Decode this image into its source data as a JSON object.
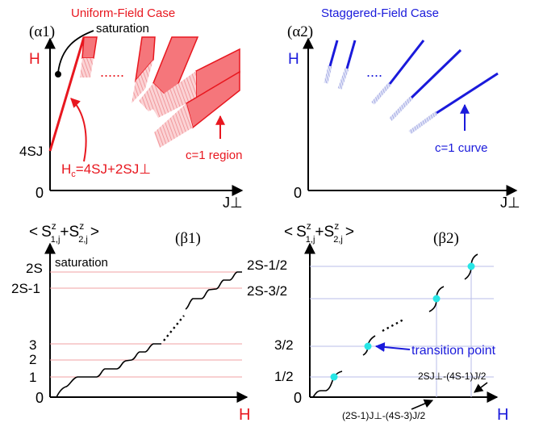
{
  "colors": {
    "red": "#e8171f",
    "red_fill": "#f5767b",
    "blue": "#1a1adb",
    "blue_pale": "#aab0e8",
    "red_pale": "#f5b3b6",
    "cyan": "#27e6e6",
    "pink_line": "#f2a0a3",
    "lavender_line": "#b9bde8",
    "ink": "#000000"
  },
  "panels": {
    "a1": {
      "heading": "Uniform-Field Case",
      "label": "(α1)",
      "y_axis": "H",
      "x_axis": "J⊥",
      "origin": "0",
      "tick_4sj": "4SJ",
      "dots": "......",
      "saturation": "saturation",
      "hc_label": "H",
      "hc_sub": "c",
      "hc_rest": "=4SJ+2SJ⊥",
      "region_label": "c=1 region"
    },
    "a2": {
      "heading": "Staggered-Field Case",
      "label": "(α2)",
      "y_axis": "H",
      "x_axis": "J⊥",
      "origin": "0",
      "dots": "....",
      "curve_label": "c=1 curve"
    },
    "b1": {
      "label": "(β1)",
      "x_axis": "H",
      "origin": "0",
      "saturation": "saturation",
      "y_ticks": [
        "2S",
        "2S-1",
        "3",
        "2",
        "1",
        "0"
      ]
    },
    "b2": {
      "label": "(β2)",
      "x_axis": "H",
      "origin": "0",
      "y_ticks": [
        "2S-1/2",
        "2S-3/2",
        "3/2",
        "1/2",
        "0"
      ],
      "transition": "transition point",
      "x_note_1": "2SJ⊥-(4S-1)J/2",
      "x_note_2": "(2S-1)J⊥-(4S-3)J/2"
    },
    "ylabel_b": {
      "open": "<",
      "s1": "S",
      "sup1": "z",
      "sub1": "1,j",
      "plus": "+",
      "s2": "S",
      "sup2": "z",
      "sub2": "2,j",
      "close": ">"
    }
  }
}
